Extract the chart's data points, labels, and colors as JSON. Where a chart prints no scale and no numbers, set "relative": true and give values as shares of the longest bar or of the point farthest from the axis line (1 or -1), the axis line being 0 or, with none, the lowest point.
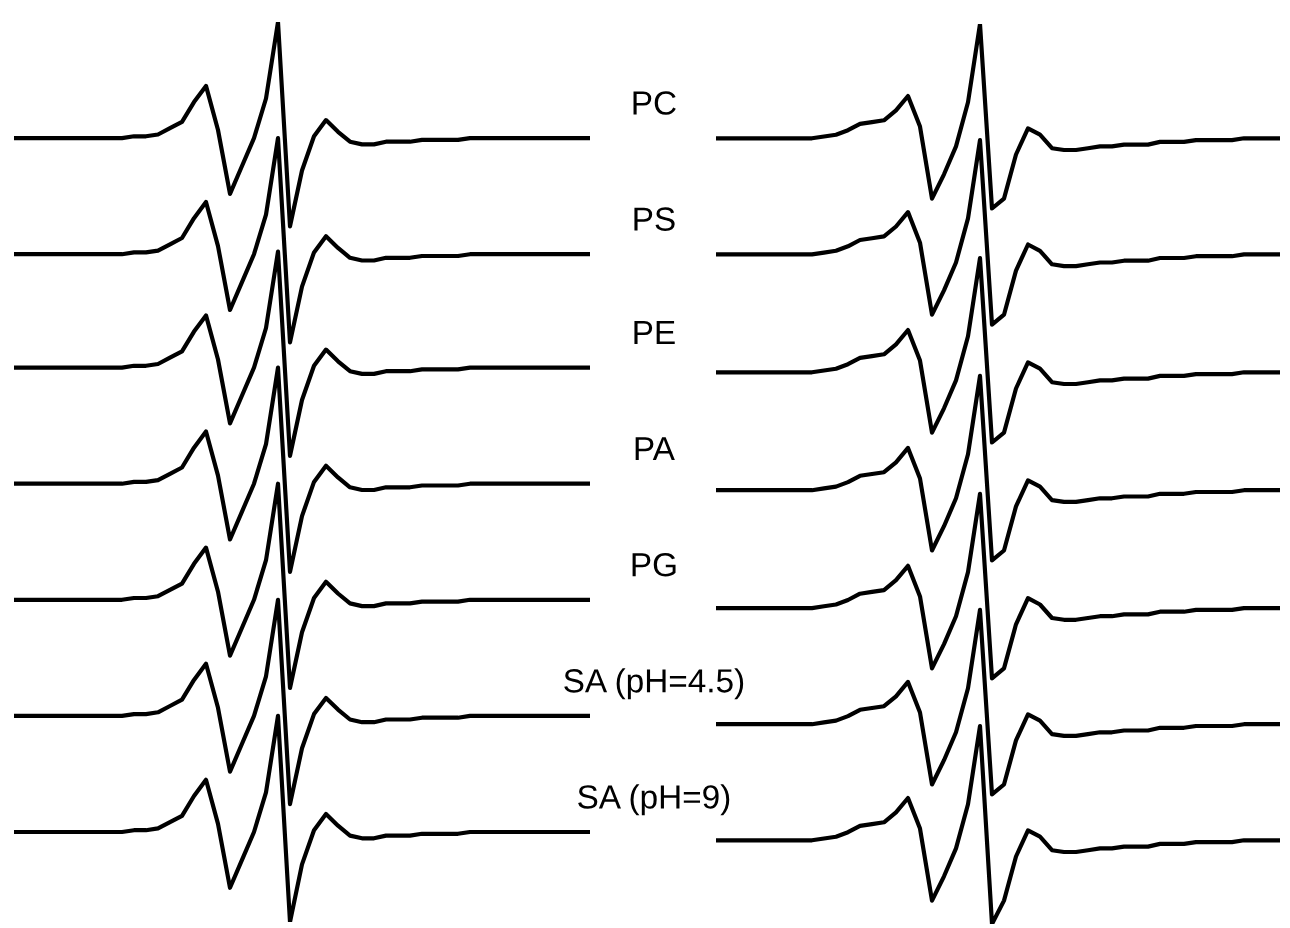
{
  "chart_data": [
    {
      "type": "line",
      "relative": true,
      "categories": [
        null,
        null,
        null,
        null,
        null,
        null,
        null,
        null,
        null,
        null,
        null,
        null,
        null,
        null,
        null,
        null,
        null,
        null,
        null,
        null,
        null,
        null,
        null,
        null,
        null,
        null,
        null,
        null,
        null,
        null,
        null,
        null,
        null,
        null,
        null,
        null,
        null,
        null,
        null,
        null,
        null,
        null,
        null,
        null,
        null,
        null,
        null,
        null,
        null
      ],
      "series": [
        {
          "name": "PC",
          "color": "#000000",
          "values": [
            0.871,
            0.871,
            0.871,
            0.871,
            0.871,
            0.871,
            0.871,
            0.871,
            0.871,
            0.871,
            0.873,
            0.873,
            0.875,
            0.882,
            0.889,
            0.911,
            0.929,
            0.88,
            0.809,
            0.84,
            0.871,
            0.915,
            1.0,
            0.773,
            0.835,
            0.873,
            0.891,
            0.878,
            0.867,
            0.864,
            0.864,
            0.867,
            0.867,
            0.867,
            0.869,
            0.869,
            0.869,
            0.869,
            0.871,
            0.871,
            0.871,
            0.871,
            0.871,
            0.871,
            0.871,
            0.871,
            0.871,
            0.871,
            0.871
          ]
        },
        {
          "name": "PS",
          "color": "#000000",
          "values": [
            0.742,
            0.742,
            0.742,
            0.742,
            0.742,
            0.742,
            0.742,
            0.742,
            0.742,
            0.742,
            0.744,
            0.744,
            0.746,
            0.753,
            0.76,
            0.782,
            0.8,
            0.751,
            0.68,
            0.711,
            0.742,
            0.786,
            0.871,
            0.644,
            0.706,
            0.744,
            0.762,
            0.749,
            0.738,
            0.735,
            0.735,
            0.738,
            0.738,
            0.738,
            0.74,
            0.74,
            0.74,
            0.74,
            0.742,
            0.742,
            0.742,
            0.742,
            0.742,
            0.742,
            0.742,
            0.742,
            0.742,
            0.742,
            0.742
          ]
        },
        {
          "name": "PE",
          "color": "#000000",
          "values": [
            0.616,
            0.616,
            0.616,
            0.616,
            0.616,
            0.616,
            0.616,
            0.616,
            0.616,
            0.616,
            0.618,
            0.618,
            0.62,
            0.627,
            0.634,
            0.656,
            0.674,
            0.625,
            0.554,
            0.585,
            0.616,
            0.66,
            0.745,
            0.518,
            0.58,
            0.618,
            0.636,
            0.623,
            0.612,
            0.609,
            0.609,
            0.612,
            0.612,
            0.612,
            0.614,
            0.614,
            0.614,
            0.614,
            0.616,
            0.616,
            0.616,
            0.616,
            0.616,
            0.616,
            0.616,
            0.616,
            0.616,
            0.616,
            0.616
          ]
        },
        {
          "name": "PA",
          "color": "#000000",
          "values": [
            0.487,
            0.487,
            0.487,
            0.487,
            0.487,
            0.487,
            0.487,
            0.487,
            0.487,
            0.487,
            0.489,
            0.489,
            0.491,
            0.498,
            0.505,
            0.527,
            0.545,
            0.496,
            0.425,
            0.456,
            0.487,
            0.531,
            0.616,
            0.389,
            0.451,
            0.489,
            0.507,
            0.494,
            0.483,
            0.48,
            0.48,
            0.483,
            0.483,
            0.483,
            0.485,
            0.485,
            0.485,
            0.485,
            0.487,
            0.487,
            0.487,
            0.487,
            0.487,
            0.487,
            0.487,
            0.487,
            0.487,
            0.487,
            0.487
          ]
        },
        {
          "name": "PG",
          "color": "#000000",
          "values": [
            0.358,
            0.358,
            0.358,
            0.358,
            0.358,
            0.358,
            0.358,
            0.358,
            0.358,
            0.358,
            0.36,
            0.36,
            0.362,
            0.369,
            0.376,
            0.398,
            0.416,
            0.367,
            0.296,
            0.327,
            0.358,
            0.402,
            0.487,
            0.26,
            0.322,
            0.36,
            0.378,
            0.365,
            0.354,
            0.351,
            0.351,
            0.354,
            0.354,
            0.354,
            0.356,
            0.356,
            0.356,
            0.356,
            0.358,
            0.358,
            0.358,
            0.358,
            0.358,
            0.358,
            0.358,
            0.358,
            0.358,
            0.358,
            0.358
          ]
        },
        {
          "name": "SA (pH=4.5)",
          "color": "#000000",
          "values": [
            0.229,
            0.229,
            0.229,
            0.229,
            0.229,
            0.229,
            0.229,
            0.229,
            0.229,
            0.229,
            0.231,
            0.231,
            0.233,
            0.24,
            0.247,
            0.269,
            0.287,
            0.238,
            0.167,
            0.198,
            0.229,
            0.273,
            0.358,
            0.131,
            0.193,
            0.231,
            0.249,
            0.236,
            0.225,
            0.222,
            0.222,
            0.225,
            0.225,
            0.225,
            0.227,
            0.227,
            0.227,
            0.227,
            0.229,
            0.229,
            0.229,
            0.229,
            0.229,
            0.229,
            0.229,
            0.229,
            0.229,
            0.229,
            0.229
          ]
        },
        {
          "name": "SA (pH=9)",
          "color": "#000000",
          "values": [
            0.1,
            0.1,
            0.1,
            0.1,
            0.1,
            0.1,
            0.1,
            0.1,
            0.1,
            0.1,
            0.102,
            0.102,
            0.104,
            0.111,
            0.118,
            0.14,
            0.158,
            0.109,
            0.038,
            0.069,
            0.1,
            0.144,
            0.229,
            0,
            0.064,
            0.102,
            0.12,
            0.107,
            0.096,
            0.093,
            0.093,
            0.096,
            0.096,
            0.096,
            0.098,
            0.098,
            0.098,
            0.098,
            0.1,
            0.1,
            0.1,
            0.1,
            0.1,
            0.1,
            0.1,
            0.1,
            0.1,
            0.1,
            0.1
          ]
        }
      ]
    },
    {
      "type": "line",
      "relative": true,
      "categories": [
        null,
        null,
        null,
        null,
        null,
        null,
        null,
        null,
        null,
        null,
        null,
        null,
        null,
        null,
        null,
        null,
        null,
        null,
        null,
        null,
        null,
        null,
        null,
        null,
        null,
        null,
        null,
        null,
        null,
        null,
        null,
        null,
        null,
        null,
        null,
        null,
        null,
        null,
        null,
        null,
        null,
        null,
        null,
        null,
        null,
        null,
        null,
        null
      ],
      "series": [
        {
          "color": "#000000",
          "values": [
            0.873,
            0.873,
            0.873,
            0.873,
            0.873,
            0.873,
            0.873,
            0.873,
            0.873,
            0.875,
            0.877,
            0.882,
            0.889,
            0.891,
            0.893,
            0.904,
            0.92,
            0.886,
            0.806,
            0.833,
            0.864,
            0.913,
            1.0,
            0.795,
            0.806,
            0.855,
            0.884,
            0.877,
            0.862,
            0.86,
            0.86,
            0.862,
            0.864,
            0.864,
            0.866,
            0.866,
            0.866,
            0.869,
            0.869,
            0.869,
            0.871,
            0.871,
            0.871,
            0.871,
            0.873,
            0.873,
            0.873,
            0.873
          ]
        },
        {
          "color": "#000000",
          "values": [
            0.744,
            0.744,
            0.744,
            0.744,
            0.744,
            0.744,
            0.744,
            0.744,
            0.744,
            0.746,
            0.748,
            0.753,
            0.76,
            0.762,
            0.764,
            0.775,
            0.791,
            0.757,
            0.677,
            0.704,
            0.735,
            0.784,
            0.871,
            0.666,
            0.677,
            0.726,
            0.755,
            0.748,
            0.733,
            0.731,
            0.731,
            0.733,
            0.735,
            0.735,
            0.737,
            0.737,
            0.737,
            0.74,
            0.74,
            0.74,
            0.742,
            0.742,
            0.742,
            0.742,
            0.744,
            0.744,
            0.744,
            0.744
          ]
        },
        {
          "color": "#000000",
          "values": [
            0.613,
            0.613,
            0.613,
            0.613,
            0.613,
            0.613,
            0.613,
            0.613,
            0.613,
            0.615,
            0.617,
            0.622,
            0.629,
            0.631,
            0.633,
            0.644,
            0.66,
            0.626,
            0.546,
            0.573,
            0.604,
            0.653,
            0.74,
            0.535,
            0.546,
            0.595,
            0.624,
            0.617,
            0.602,
            0.6,
            0.6,
            0.602,
            0.604,
            0.604,
            0.606,
            0.606,
            0.606,
            0.609,
            0.609,
            0.609,
            0.611,
            0.611,
            0.611,
            0.611,
            0.613,
            0.613,
            0.613,
            0.613
          ]
        },
        {
          "color": "#000000",
          "values": [
            0.482,
            0.482,
            0.482,
            0.482,
            0.482,
            0.482,
            0.482,
            0.482,
            0.482,
            0.484,
            0.486,
            0.491,
            0.498,
            0.5,
            0.502,
            0.513,
            0.529,
            0.495,
            0.415,
            0.442,
            0.473,
            0.522,
            0.609,
            0.404,
            0.415,
            0.464,
            0.493,
            0.486,
            0.471,
            0.469,
            0.469,
            0.471,
            0.473,
            0.473,
            0.475,
            0.475,
            0.475,
            0.478,
            0.478,
            0.478,
            0.48,
            0.48,
            0.48,
            0.48,
            0.482,
            0.482,
            0.482,
            0.482
          ]
        },
        {
          "color": "#000000",
          "values": [
            0.351,
            0.351,
            0.351,
            0.351,
            0.351,
            0.351,
            0.351,
            0.351,
            0.351,
            0.353,
            0.355,
            0.36,
            0.367,
            0.369,
            0.371,
            0.382,
            0.398,
            0.364,
            0.284,
            0.311,
            0.342,
            0.391,
            0.478,
            0.273,
            0.284,
            0.333,
            0.362,
            0.355,
            0.34,
            0.338,
            0.338,
            0.34,
            0.342,
            0.342,
            0.344,
            0.344,
            0.344,
            0.347,
            0.347,
            0.347,
            0.349,
            0.349,
            0.349,
            0.349,
            0.351,
            0.351,
            0.351,
            0.351
          ]
        },
        {
          "color": "#000000",
          "values": [
            0.222,
            0.222,
            0.222,
            0.222,
            0.222,
            0.222,
            0.222,
            0.222,
            0.222,
            0.224,
            0.226,
            0.231,
            0.238,
            0.24,
            0.242,
            0.253,
            0.269,
            0.235,
            0.155,
            0.182,
            0.213,
            0.262,
            0.349,
            0.144,
            0.155,
            0.204,
            0.233,
            0.226,
            0.211,
            0.209,
            0.209,
            0.211,
            0.213,
            0.213,
            0.215,
            0.215,
            0.215,
            0.218,
            0.218,
            0.218,
            0.22,
            0.22,
            0.22,
            0.22,
            0.222,
            0.222,
            0.222,
            0.222
          ]
        },
        {
          "color": "#000000",
          "values": [
            0.093,
            0.093,
            0.093,
            0.093,
            0.093,
            0.093,
            0.093,
            0.093,
            0.093,
            0.095,
            0.097,
            0.102,
            0.109,
            0.111,
            0.113,
            0.124,
            0.14,
            0.106,
            0.026,
            0.053,
            0.084,
            0.133,
            0.22,
            0,
            0.026,
            0.075,
            0.104,
            0.097,
            0.082,
            0.08,
            0.08,
            0.082,
            0.084,
            0.084,
            0.086,
            0.086,
            0.086,
            0.089,
            0.089,
            0.089,
            0.091,
            0.091,
            0.091,
            0.091,
            0.093,
            0.093,
            0.093,
            0.093
          ]
        }
      ]
    }
  ]
}
